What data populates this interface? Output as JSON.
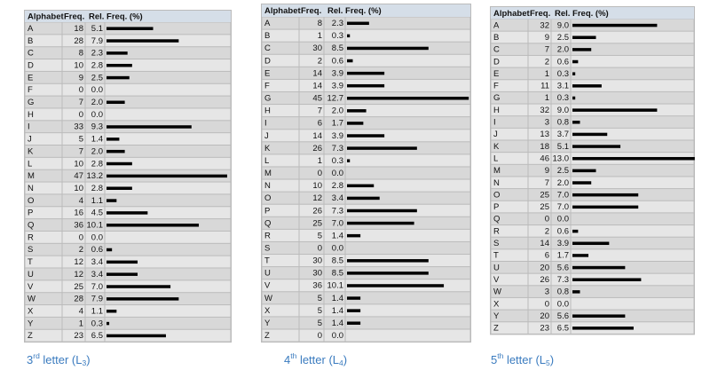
{
  "tables": [
    {
      "header": [
        "Alphabet",
        "Freq.",
        "Rel. Freq. (%)"
      ],
      "rows": [
        [
          "A",
          18,
          "5.1"
        ],
        [
          "B",
          28,
          "7.9"
        ],
        [
          "C",
          8,
          "2.3"
        ],
        [
          "D",
          10,
          "2.8"
        ],
        [
          "E",
          9,
          "2.5"
        ],
        [
          "F",
          0,
          "0.0"
        ],
        [
          "G",
          7,
          "2.0"
        ],
        [
          "H",
          0,
          "0.0"
        ],
        [
          "I",
          33,
          "9.3"
        ],
        [
          "J",
          5,
          "1.4"
        ],
        [
          "K",
          7,
          "2.0"
        ],
        [
          "L",
          10,
          "2.8"
        ],
        [
          "M",
          47,
          "13.2"
        ],
        [
          "N",
          10,
          "2.8"
        ],
        [
          "O",
          4,
          "1.1"
        ],
        [
          "P",
          16,
          "4.5"
        ],
        [
          "Q",
          36,
          "10.1"
        ],
        [
          "R",
          0,
          "0.0"
        ],
        [
          "S",
          2,
          "0.6"
        ],
        [
          "T",
          12,
          "3.4"
        ],
        [
          "U",
          12,
          "3.4"
        ],
        [
          "V",
          25,
          "7.0"
        ],
        [
          "W",
          28,
          "7.9"
        ],
        [
          "X",
          4,
          "1.1"
        ],
        [
          "Y",
          1,
          "0.3"
        ],
        [
          "Z",
          23,
          "6.5"
        ]
      ],
      "caption": {
        "number": "3",
        "suffix": "rd",
        "text": " letter (L",
        "subscript": "3",
        "end": ")"
      }
    },
    {
      "header": [
        "Alphabet",
        "Freq.",
        "Rel. Freq. (%)"
      ],
      "rows": [
        [
          "A",
          8,
          "2.3"
        ],
        [
          "B",
          1,
          "0.3"
        ],
        [
          "C",
          30,
          "8.5"
        ],
        [
          "D",
          2,
          "0.6"
        ],
        [
          "E",
          14,
          "3.9"
        ],
        [
          "F",
          14,
          "3.9"
        ],
        [
          "G",
          45,
          "12.7"
        ],
        [
          "H",
          7,
          "2.0"
        ],
        [
          "I",
          6,
          "1.7"
        ],
        [
          "J",
          14,
          "3.9"
        ],
        [
          "K",
          26,
          "7.3"
        ],
        [
          "L",
          1,
          "0.3"
        ],
        [
          "M",
          0,
          "0.0"
        ],
        [
          "N",
          10,
          "2.8"
        ],
        [
          "O",
          12,
          "3.4"
        ],
        [
          "P",
          26,
          "7.3"
        ],
        [
          "Q",
          25,
          "7.0"
        ],
        [
          "R",
          5,
          "1.4"
        ],
        [
          "S",
          0,
          "0.0"
        ],
        [
          "T",
          30,
          "8.5"
        ],
        [
          "U",
          30,
          "8.5"
        ],
        [
          "V",
          36,
          "10.1"
        ],
        [
          "W",
          5,
          "1.4"
        ],
        [
          "X",
          5,
          "1.4"
        ],
        [
          "Y",
          5,
          "1.4"
        ],
        [
          "Z",
          0,
          "0.0"
        ]
      ],
      "caption": {
        "number": "4",
        "suffix": "th",
        "text": " letter (L",
        "subscript": "4",
        "end": ")"
      }
    },
    {
      "header": [
        "Alphabet",
        "Freq.",
        "Rel. Freq. (%)"
      ],
      "rows": [
        [
          "A",
          32,
          "9.0"
        ],
        [
          "B",
          9,
          "2.5"
        ],
        [
          "C",
          7,
          "2.0"
        ],
        [
          "D",
          2,
          "0.6"
        ],
        [
          "E",
          1,
          "0.3"
        ],
        [
          "F",
          11,
          "3.1"
        ],
        [
          "G",
          1,
          "0.3"
        ],
        [
          "H",
          32,
          "9.0"
        ],
        [
          "I",
          3,
          "0.8"
        ],
        [
          "J",
          13,
          "3.7"
        ],
        [
          "K",
          18,
          "5.1"
        ],
        [
          "L",
          46,
          "13.0"
        ],
        [
          "M",
          9,
          "2.5"
        ],
        [
          "N",
          7,
          "2.0"
        ],
        [
          "O",
          25,
          "7.0"
        ],
        [
          "P",
          25,
          "7.0"
        ],
        [
          "Q",
          0,
          "0.0"
        ],
        [
          "R",
          2,
          "0.6"
        ],
        [
          "S",
          14,
          "3.9"
        ],
        [
          "T",
          6,
          "1.7"
        ],
        [
          "U",
          20,
          "5.6"
        ],
        [
          "V",
          26,
          "7.3"
        ],
        [
          "W",
          3,
          "0.8"
        ],
        [
          "X",
          0,
          "0.0"
        ],
        [
          "Y",
          20,
          "5.6"
        ],
        [
          "Z",
          23,
          "6.5"
        ]
      ],
      "caption": {
        "number": "5",
        "suffix": "th",
        "text": " letter (L",
        "subscript": "5",
        "end": ")"
      }
    }
  ]
}
